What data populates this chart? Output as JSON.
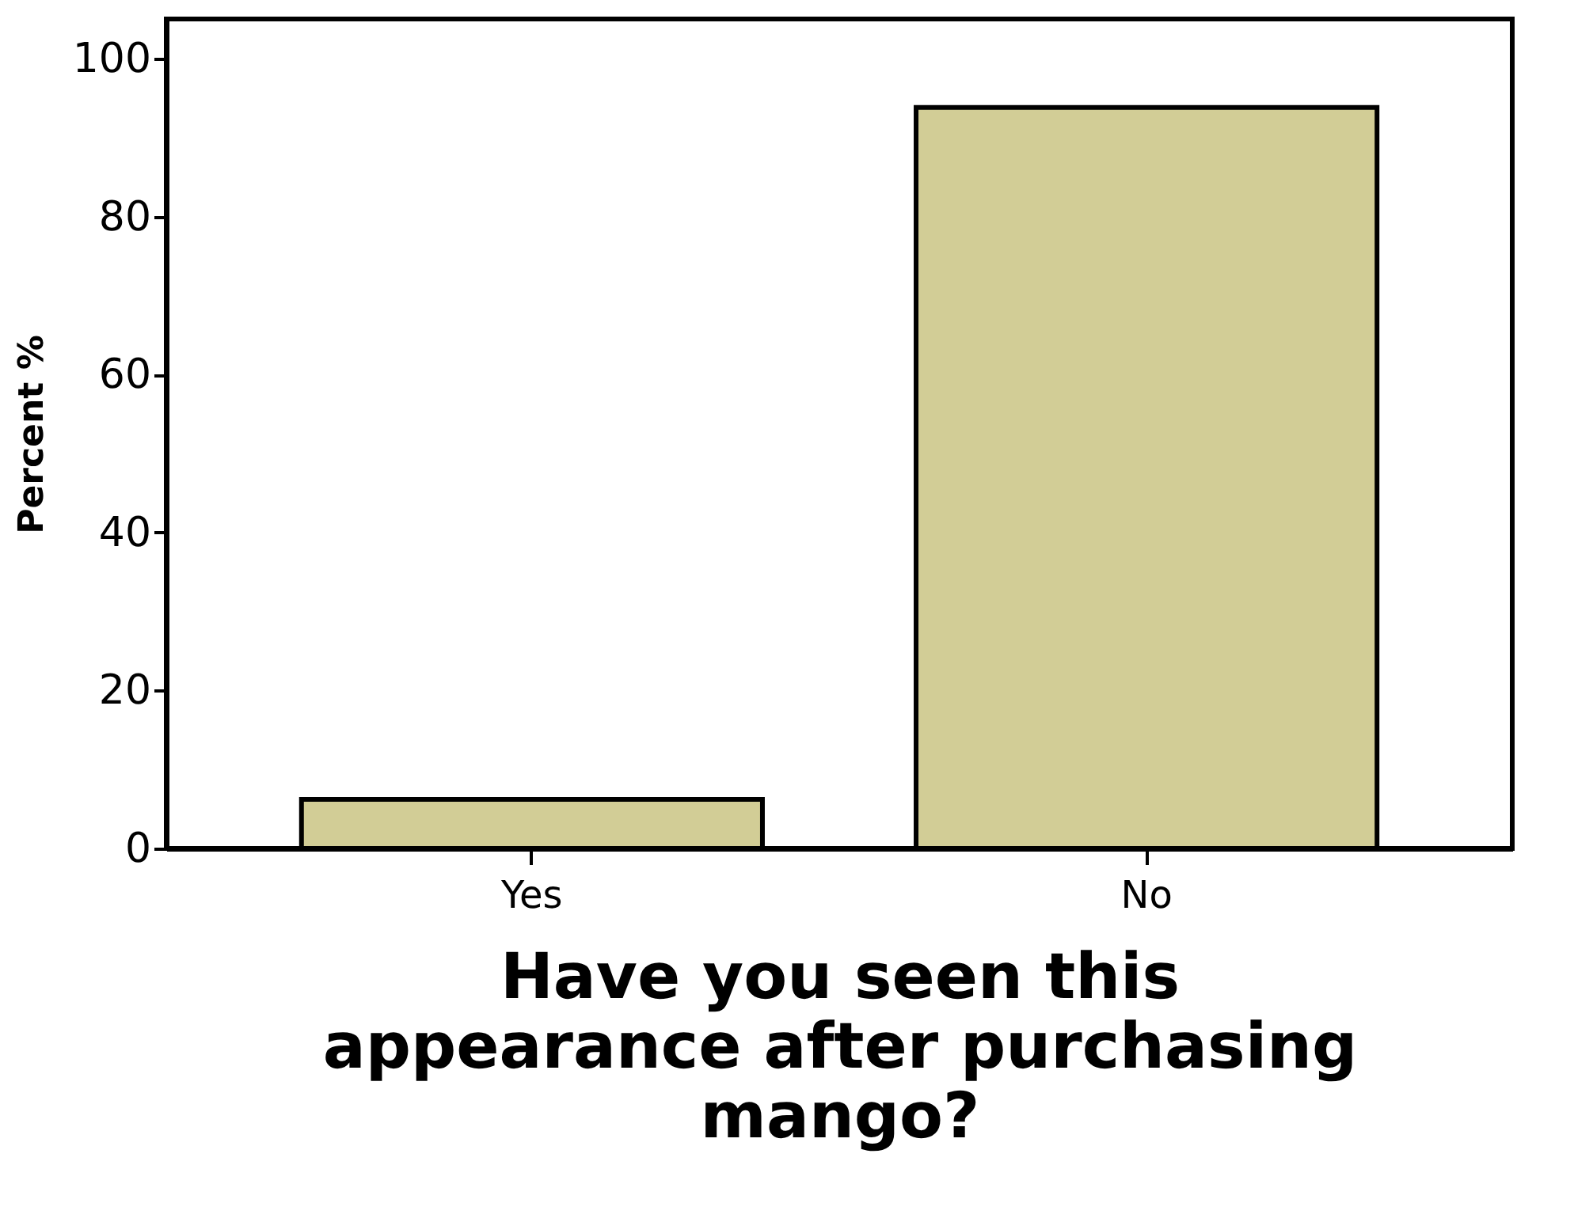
{
  "chart_data": {
    "type": "bar",
    "xlabel": "Have you seen this appearance after purchasing mango?",
    "ylabel": "Percent %",
    "categories": [
      "Yes",
      "No"
    ],
    "values": [
      6.2,
      93.8
    ],
    "color": "#d2cd96",
    "ylim": [
      0,
      105
    ],
    "yticks": [
      0,
      20,
      40,
      60,
      80,
      100
    ],
    "grid": false
  }
}
